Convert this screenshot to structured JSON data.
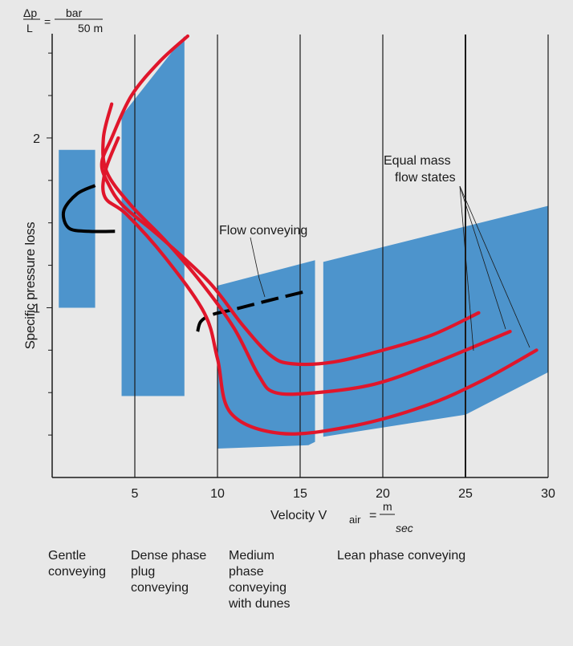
{
  "chart_data": {
    "type": "line",
    "xlabel": "Velocity V",
    "xlabel_sub": "air",
    "xlabel_unit_num": "m",
    "xlabel_unit_den": "sec",
    "ylabel": "Specific pressure loss",
    "ylabel_unit": {
      "num": "Δp",
      "den": "L",
      "unit_num": "bar",
      "unit_den": "50 m"
    },
    "xlim": [
      0,
      30
    ],
    "ylim": [
      0,
      2.6
    ],
    "x_ticks": [
      5,
      10,
      15,
      20,
      25,
      30
    ],
    "y_ticks": [
      1,
      2
    ],
    "grid": "vertical lines at 5,10,15,20,25,30",
    "series": [
      {
        "x": [
          8.2,
          6.5,
          4.8,
          3.6,
          3.0,
          3.4,
          4.3,
          6.5,
          9.5,
          11.5,
          13.2,
          14.5,
          17.0,
          20.0,
          23.0,
          25.8
        ],
        "y": [
          2.6,
          2.45,
          2.25,
          2.0,
          1.85,
          1.73,
          1.6,
          1.42,
          1.15,
          0.9,
          0.72,
          0.67,
          0.68,
          0.75,
          0.84,
          0.97
        ]
      },
      {
        "x": [
          3.6,
          3.1,
          3.3,
          4.8,
          6.8,
          9.0,
          11.0,
          12.5,
          13.5,
          16.0,
          19.5,
          23.0,
          27.7
        ],
        "y": [
          2.2,
          2.0,
          1.8,
          1.6,
          1.4,
          1.15,
          0.88,
          0.6,
          0.5,
          0.5,
          0.55,
          0.67,
          0.86
        ]
      },
      {
        "x": [
          4.0,
          3.2,
          3.2,
          4.5,
          6.8,
          9.2,
          10.0,
          10.8,
          13.8,
          18.0,
          22.5,
          26.0,
          29.3
        ],
        "y": [
          2.0,
          1.8,
          1.65,
          1.55,
          1.3,
          0.97,
          0.7,
          0.38,
          0.26,
          0.3,
          0.42,
          0.57,
          0.75
        ]
      }
    ],
    "boundary_curves": [
      {
        "x": [
          2.6,
          1.5,
          0.7,
          1.0,
          2.2,
          3.8
        ],
        "y": [
          1.72,
          1.67,
          1.57,
          1.47,
          1.45,
          1.45
        ],
        "style": "solid"
      },
      {
        "x": [
          8.8,
          9.0,
          9.7,
          11.0,
          13.0,
          15.5
        ],
        "y": [
          0.86,
          0.92,
          0.96,
          0.99,
          1.04,
          1.1
        ],
        "style": "dashed"
      }
    ],
    "regions": [
      {
        "label": "Gentle conveying",
        "x_from": 0.4,
        "x_to": 2.6,
        "y_from": 1.0,
        "y_to": 1.93
      },
      {
        "label": "Dense phase plug conveying",
        "x_from": 4.2,
        "x_to": 8.0,
        "y_from": 0.48,
        "y_to": 2.6
      },
      {
        "label": "Medium phase conveying with dunes",
        "x_from": 10.0,
        "x_to": 15.9,
        "y_from": 0.17,
        "y_to": 1.28
      },
      {
        "label": "Lean phase conveying",
        "x_from": 16.4,
        "x_to": 30.0,
        "y_from": 0.24,
        "y_to": 1.6
      }
    ]
  },
  "annotations": {
    "flow_conveying": "Flow conveying",
    "equal_mass_line1": "Equal mass",
    "equal_mass_line2": "flow states"
  },
  "bottom_labels": {
    "gentle": "Gentle\nconveying",
    "dense": "Dense phase\nplug\nconveying",
    "medium": "Medium\nphase\nconveying\nwith dunes",
    "lean": "Lean phase conveying"
  },
  "colors": {
    "region": "#4d94cc",
    "curve": "#e0162b",
    "boundary": "#000000",
    "background": "#e8e8e8",
    "axis": "#1a1a1a"
  }
}
